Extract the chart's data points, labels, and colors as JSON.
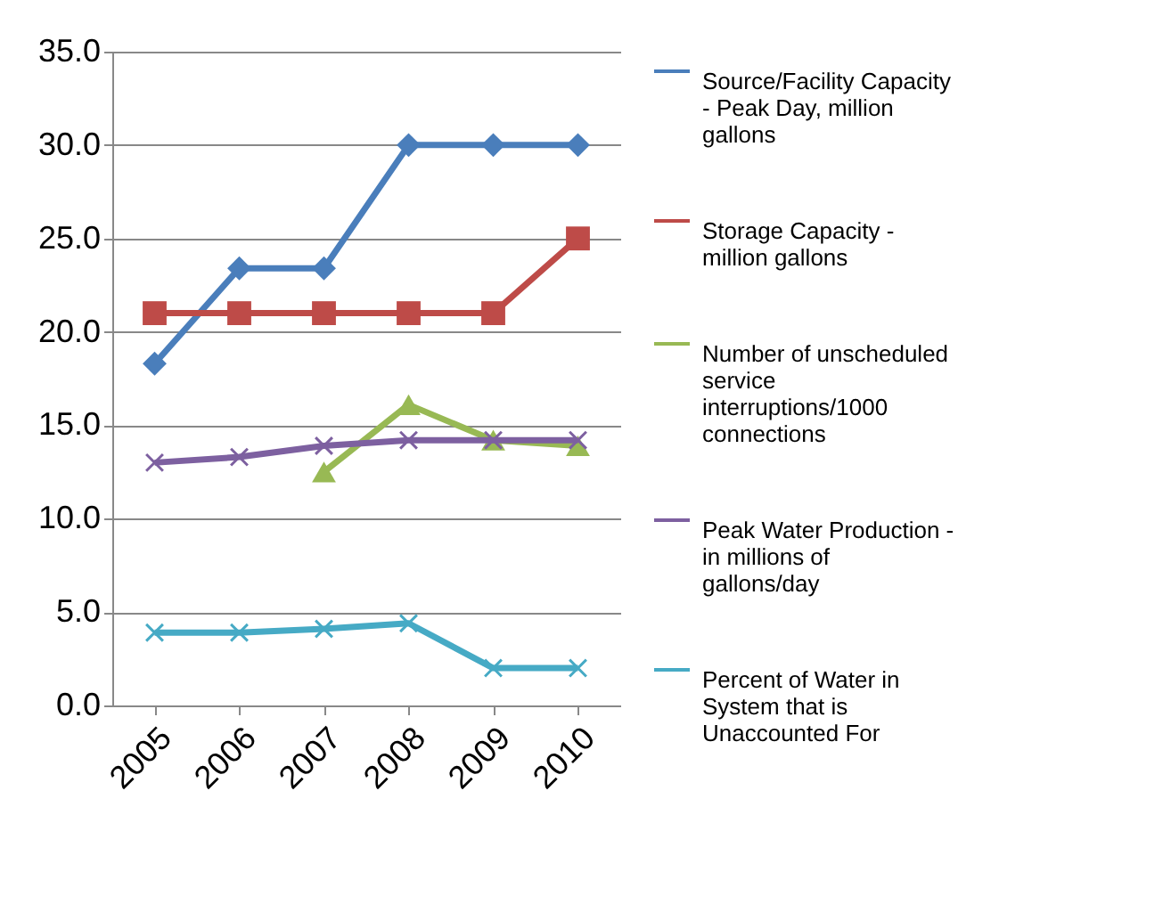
{
  "chart_data": {
    "type": "line",
    "categories": [
      "2005",
      "2006",
      "2007",
      "2008",
      "2009",
      "2010"
    ],
    "ylim": [
      0,
      35
    ],
    "yticks": [
      {
        "value": 0,
        "label": "0.0"
      },
      {
        "value": 5,
        "label": "5.0"
      },
      {
        "value": 10,
        "label": "10.0"
      },
      {
        "value": 15,
        "label": "15.0"
      },
      {
        "value": 20,
        "label": "20.0"
      },
      {
        "value": 25,
        "label": "25.0"
      },
      {
        "value": 30,
        "label": "30.0"
      },
      {
        "value": 35,
        "label": "35.0"
      }
    ],
    "grid": "y",
    "legend": "right",
    "line_style": "solid",
    "series": [
      {
        "name": "Source/Facility Capacity - Peak Day, million gallons",
        "color": "#4a7ebb",
        "marker": "diamond",
        "values": [
          18.3,
          23.4,
          23.4,
          30.0,
          30.0,
          30.0
        ]
      },
      {
        "name": "Storage Capacity - million gallons",
        "color": "#be4b48",
        "marker": "square",
        "values": [
          21.0,
          21.0,
          21.0,
          21.0,
          21.0,
          25.0
        ]
      },
      {
        "name": "Number of unscheduled service interruptions/1000 connections",
        "color": "#98b954",
        "marker": "triangle",
        "values": [
          null,
          null,
          12.5,
          16.1,
          14.2,
          13.9
        ]
      },
      {
        "name": "Peak Water Production - in millions of gallons/day",
        "color": "#7d60a0",
        "marker": "cross",
        "values": [
          13.0,
          13.3,
          13.9,
          14.2,
          14.2,
          14.2
        ]
      },
      {
        "name": "Percent of Water in System that is Unaccounted For",
        "color": "#46aac5",
        "marker": "cross",
        "values": [
          3.9,
          3.9,
          4.1,
          4.4,
          2.0,
          2.0
        ]
      }
    ]
  }
}
